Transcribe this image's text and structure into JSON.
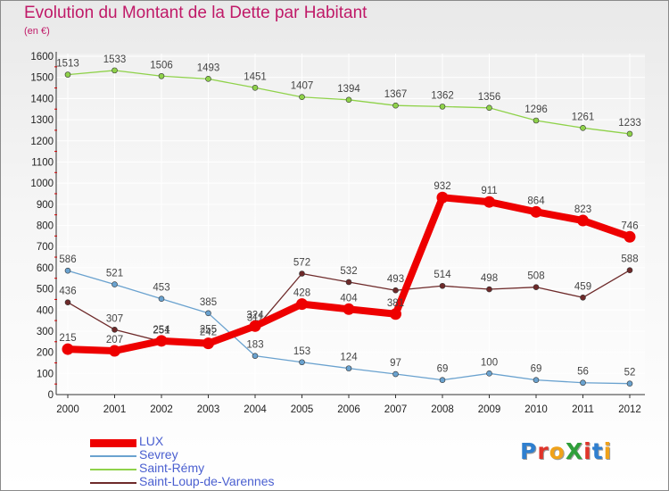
{
  "title": "Evolution du Montant de la Dette par Habitant",
  "subtitle": "(en €)",
  "brand": {
    "text": "ProXiti",
    "letters": [
      {
        "ch": "P",
        "color": "#2f7fcf"
      },
      {
        "ch": "r",
        "color": "#e0342a"
      },
      {
        "ch": "o",
        "color": "#f0a21a"
      },
      {
        "ch": "X",
        "color": "#2f9f3a"
      },
      {
        "ch": "i",
        "color": "#e0342a"
      },
      {
        "ch": "t",
        "color": "#2f7fcf"
      },
      {
        "ch": "i",
        "color": "#f0a21a"
      }
    ]
  },
  "colors": {
    "axis": "#333333",
    "grid": "#ffffff",
    "tick_text": "#222222",
    "value_text": "#444444",
    "axis_accent": "#d40000"
  },
  "chart_data": {
    "type": "line",
    "title": "Evolution du Montant de la Dette par Habitant",
    "subtitle": "(en €)",
    "xlabel": "",
    "ylabel": "",
    "categories": [
      "2000",
      "2001",
      "2002",
      "2003",
      "2004",
      "2005",
      "2006",
      "2007",
      "2008",
      "2009",
      "2010",
      "2011",
      "2012"
    ],
    "ylim": [
      0,
      1600
    ],
    "yticks": [
      0,
      100,
      200,
      300,
      400,
      500,
      600,
      700,
      800,
      900,
      1000,
      1100,
      1200,
      1300,
      1400,
      1500,
      1600
    ],
    "grid": true,
    "legend_position": "bottom-left",
    "series": [
      {
        "name": "LUX",
        "color": "#ee0000",
        "emphasis": true,
        "values": [
          215,
          207,
          254,
          242,
          324,
          428,
          404,
          381,
          932,
          911,
          864,
          823,
          746
        ],
        "labels": [
          "215",
          "207",
          "254",
          "242",
          "324",
          "428",
          "404",
          "381",
          "932",
          "911",
          "864",
          "823",
          "746"
        ]
      },
      {
        "name": "Sevrey",
        "color": "#6aa2cf",
        "emphasis": false,
        "values": [
          586,
          521,
          453,
          385,
          183,
          153,
          124,
          97,
          69,
          100,
          69,
          56,
          52
        ],
        "labels": [
          "586",
          "521",
          "453",
          "385",
          "183",
          "153",
          "124",
          "97",
          "69",
          "100",
          "69",
          "56",
          "52"
        ]
      },
      {
        "name": "Saint-Rémy",
        "color": "#8fd24a",
        "emphasis": false,
        "values": [
          1513,
          1533,
          1506,
          1493,
          1451,
          1407,
          1394,
          1367,
          1362,
          1356,
          1296,
          1261,
          1233
        ],
        "labels": [
          "1513",
          "1533",
          "1506",
          "1493",
          "1451",
          "1407",
          "1394",
          "1367",
          "1362",
          "1356",
          "1296",
          "1261",
          "1233"
        ]
      },
      {
        "name": "Saint-Loup-de-Varennes",
        "color": "#6e2a2a",
        "emphasis": false,
        "values": [
          436,
          307,
          251,
          255,
          311,
          572,
          532,
          493,
          514,
          498,
          508,
          459,
          588
        ],
        "labels": [
          "436",
          "307",
          "251",
          "255",
          "311",
          "572",
          "532",
          "493",
          "514",
          "498",
          "508",
          "459",
          "588"
        ]
      }
    ]
  }
}
